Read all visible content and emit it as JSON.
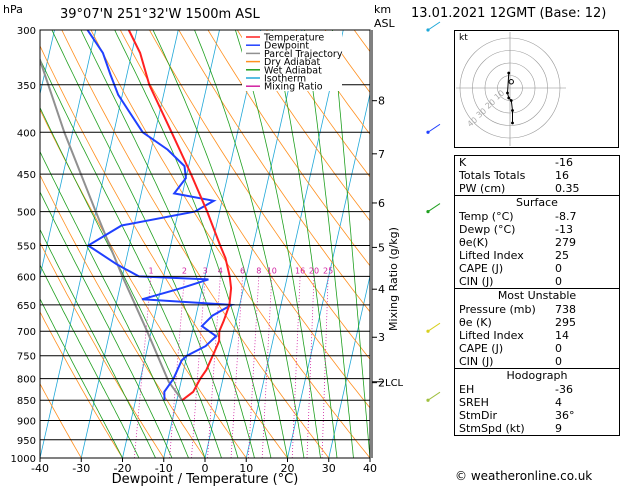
{
  "header": {
    "location": "39°07'N  251°32'W  1500m  ASL",
    "date": "13.01.2021  12GMT  (Base: 12)",
    "hpa_label": "hPa",
    "km_label": "km",
    "asl_label": "ASL"
  },
  "chart_data": {
    "type": "skew-t",
    "xlabel": "Dewpoint / Temperature (°C)",
    "ylabel_right": "Mixing Ratio (g/kg)",
    "xlim": [
      -40,
      40
    ],
    "ylim": [
      1000,
      300
    ],
    "pressure_ticks": [
      300,
      350,
      400,
      450,
      500,
      550,
      600,
      650,
      700,
      750,
      800,
      850,
      900,
      950,
      1000
    ],
    "temperature_ticks": [
      -40,
      -30,
      -20,
      -10,
      0,
      10,
      20,
      30,
      40
    ],
    "km_ticks": [
      {
        "label": "8",
        "p": 366
      },
      {
        "label": "7",
        "p": 425
      },
      {
        "label": "6",
        "p": 488
      },
      {
        "label": "5",
        "p": 553
      },
      {
        "label": "4",
        "p": 622
      },
      {
        "label": "3",
        "p": 712
      },
      {
        "label": "2",
        "p": 809
      }
    ],
    "lcl_label": "LCL",
    "lcl_p": 807,
    "mixing_ratio_labels": [
      "1",
      "2",
      "3",
      "4",
      "6",
      "8",
      "10",
      "16",
      "20",
      "25"
    ],
    "mixing_ratio_values": [
      1,
      2,
      3,
      4,
      6,
      8,
      10,
      16,
      20,
      25
    ],
    "legend": [
      "Temperature",
      "Dewpoint",
      "Parcel Trajectory",
      "Dry Adiabat",
      "Wet Adiabat",
      "Isotherm",
      "Mixing Ratio"
    ],
    "legend_colors": [
      "#ff2020",
      "#2040ff",
      "#909090",
      "#ff9020",
      "#20a020",
      "#20a8d8",
      "#d020a0"
    ],
    "series": [
      {
        "name": "Temperature",
        "points": [
          [
            850,
            -8.7
          ],
          [
            830,
            -6.5
          ],
          [
            800,
            -5.5
          ],
          [
            780,
            -4.5
          ],
          [
            760,
            -4
          ],
          [
            740,
            -3.5
          ],
          [
            720,
            -3
          ],
          [
            700,
            -3.5
          ],
          [
            680,
            -3
          ],
          [
            650,
            -2.5
          ],
          [
            620,
            -3
          ],
          [
            600,
            -4
          ],
          [
            570,
            -6
          ],
          [
            550,
            -8
          ],
          [
            500,
            -13
          ],
          [
            450,
            -19
          ],
          [
            400,
            -26
          ],
          [
            350,
            -34
          ],
          [
            320,
            -38
          ],
          [
            300,
            -42
          ]
        ]
      },
      {
        "name": "Dewpoint",
        "points": [
          [
            850,
            -13
          ],
          [
            830,
            -13.5
          ],
          [
            800,
            -12
          ],
          [
            760,
            -11
          ],
          [
            750,
            -10
          ],
          [
            730,
            -6
          ],
          [
            710,
            -4
          ],
          [
            690,
            -8
          ],
          [
            670,
            -6
          ],
          [
            650,
            -2
          ],
          [
            640,
            -24
          ],
          [
            620,
            -15
          ],
          [
            605,
            -9
          ],
          [
            600,
            -26
          ],
          [
            580,
            -32
          ],
          [
            550,
            -40
          ],
          [
            520,
            -33
          ],
          [
            500,
            -16
          ],
          [
            485,
            -12
          ],
          [
            475,
            -22
          ],
          [
            455,
            -20
          ],
          [
            440,
            -21
          ],
          [
            420,
            -26
          ],
          [
            400,
            -33
          ],
          [
            360,
            -41
          ],
          [
            340,
            -44
          ],
          [
            320,
            -47
          ],
          [
            300,
            -52
          ]
        ]
      },
      {
        "name": "Parcel Trajectory",
        "points": [
          [
            850,
            -8.7
          ],
          [
            807,
            -13
          ],
          [
            700,
            -21
          ],
          [
            600,
            -30
          ],
          [
            500,
            -40
          ],
          [
            400,
            -52
          ],
          [
            300,
            -66
          ]
        ]
      }
    ]
  },
  "hodograph": {
    "label": "kt",
    "rings": [
      10,
      20,
      30,
      40
    ],
    "ring_labels": [
      "10",
      "20",
      "30",
      "40"
    ],
    "trace_kt": [
      [
        2,
        -28
      ],
      [
        2,
        -18
      ],
      [
        1,
        -10
      ],
      [
        -1,
        -8
      ],
      [
        -2,
        -4
      ],
      [
        -1,
        12
      ]
    ],
    "storm_motion_kt": [
      1,
      5
    ]
  },
  "indices": {
    "rows": [
      {
        "label": "K",
        "value": "-16"
      },
      {
        "label": "Totals Totals",
        "value": "16"
      },
      {
        "label": "PW (cm)",
        "value": "0.35"
      }
    ]
  },
  "surface": {
    "title": "Surface",
    "rows": [
      {
        "label": "Temp (°C)",
        "value": "-8.7"
      },
      {
        "label": "Dewp (°C)",
        "value": "-13"
      },
      {
        "label": "θe(K)",
        "value": "279"
      },
      {
        "label": "Lifted Index",
        "value": "25"
      },
      {
        "label": "CAPE (J)",
        "value": "0"
      },
      {
        "label": "CIN (J)",
        "value": "0"
      }
    ]
  },
  "most_unstable": {
    "title": "Most Unstable",
    "rows": [
      {
        "label": "Pressure (mb)",
        "value": "738"
      },
      {
        "label": "θe (K)",
        "value": "295"
      },
      {
        "label": "Lifted Index",
        "value": "14"
      },
      {
        "label": "CAPE (J)",
        "value": "0"
      },
      {
        "label": "CIN (J)",
        "value": "0"
      }
    ]
  },
  "hodo_table": {
    "title": "Hodograph",
    "rows": [
      {
        "label": "EH",
        "value": "-36"
      },
      {
        "label": "SREH",
        "value": "4"
      },
      {
        "label": "StmDir",
        "value": "36°"
      },
      {
        "label": "StmSpd (kt)",
        "value": "9"
      }
    ]
  },
  "credit": "© weatheronline.co.uk"
}
